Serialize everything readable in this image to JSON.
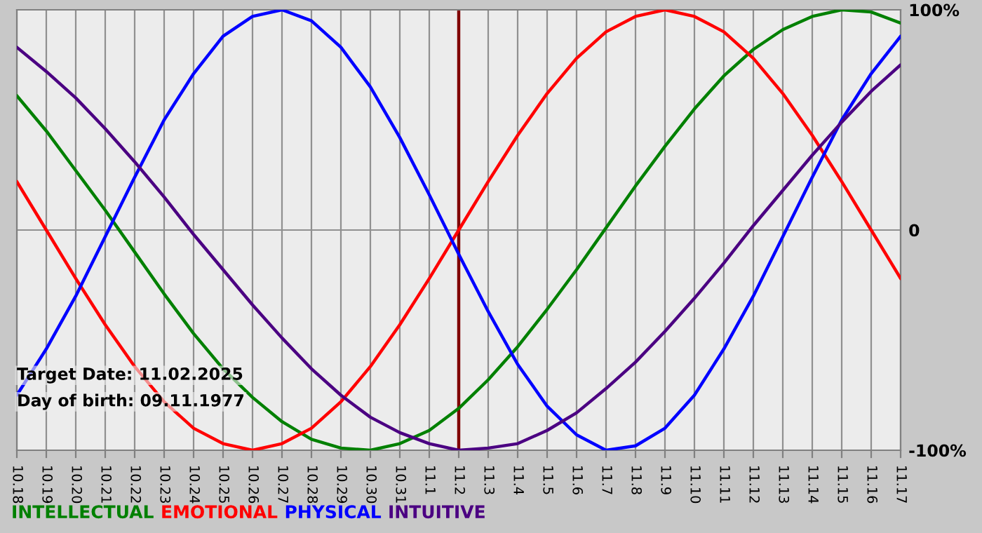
{
  "chart_data": {
    "type": "line",
    "categories": [
      "10.18",
      "10.19",
      "10.20",
      "10.21",
      "10.22",
      "10.23",
      "10.24",
      "10.25",
      "10.26",
      "10.27",
      "10.28",
      "10.29",
      "10.30",
      "10.31",
      "11.1",
      "11.2",
      "11.3",
      "11.4",
      "11.5",
      "11.6",
      "11.7",
      "11.8",
      "11.9",
      "11.10",
      "11.11",
      "11.12",
      "11.13",
      "11.14",
      "11.15",
      "11.16",
      "11.17"
    ],
    "series": [
      {
        "name": "INTELLECTUAL",
        "color": "#008000",
        "values": [
          61,
          45,
          27,
          9,
          -10,
          -29,
          -47,
          -63,
          -76,
          -87,
          -95,
          -99,
          -100,
          -97,
          -91,
          -81,
          -68,
          -53,
          -36,
          -18,
          1,
          20,
          38,
          55,
          70,
          82,
          91,
          97,
          100,
          99,
          94
        ]
      },
      {
        "name": "EMOTIONAL",
        "color": "#ff0000",
        "values": [
          22,
          0,
          -22,
          -43,
          -62,
          -78,
          -90,
          -97,
          -100,
          -97,
          -90,
          -78,
          -62,
          -43,
          -22,
          0,
          22,
          43,
          62,
          78,
          90,
          97,
          100,
          97,
          90,
          78,
          62,
          43,
          22,
          0,
          -22
        ]
      },
      {
        "name": "PHYSICAL",
        "color": "#0000ff",
        "values": [
          -75,
          -54,
          -30,
          -3,
          24,
          50,
          71,
          88,
          97,
          100,
          95,
          83,
          65,
          42,
          16,
          -11,
          -37,
          -61,
          -80,
          -93,
          -100,
          -98,
          -90,
          -75,
          -54,
          -30,
          -3,
          24,
          50,
          71,
          88
        ]
      },
      {
        "name": "INTUITIVE",
        "color": "#4b0082",
        "values": [
          83,
          72,
          60,
          46,
          31,
          15,
          -2,
          -18,
          -34,
          -49,
          -63,
          -75,
          -85,
          -92,
          -97,
          -100,
          -99,
          -97,
          -91,
          -83,
          -72,
          -60,
          -46,
          -31,
          -15,
          2,
          18,
          34,
          49,
          63,
          75
        ]
      }
    ],
    "ylim": [
      -100,
      100
    ],
    "yticks": [
      {
        "value": 100,
        "label": "100%"
      },
      0,
      {
        "value": -100,
        "label": "-100%"
      }
    ],
    "grid": true,
    "legend": "bottom",
    "ref_lines": [
      {
        "axis": "x",
        "value": "11.2",
        "color": "#800000"
      }
    ],
    "annotations": [
      "Target Date: 11.02.2025",
      "Day of birth: 09.11.1977"
    ]
  }
}
